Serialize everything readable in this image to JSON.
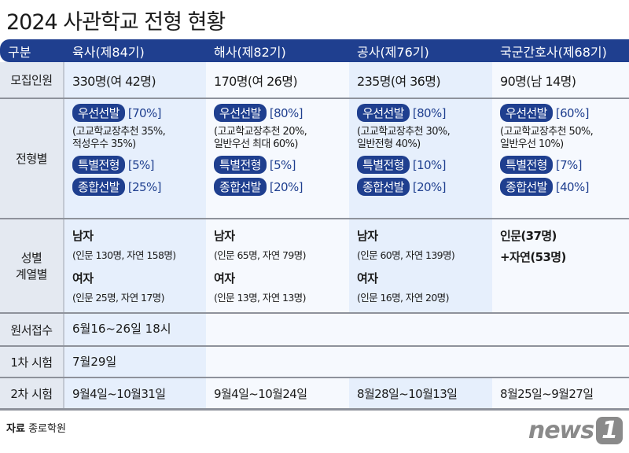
{
  "title": "2024 사관학교 전형 현황",
  "header": [
    "구분",
    "육사(제84기)",
    "해사(제82기)",
    "공사(제76기)",
    "국군간호사(제68기)"
  ],
  "recruit": {
    "label": "모집인원",
    "values": [
      "330명(여 42명)",
      "170명(여 26명)",
      "235명(여 36명)",
      "90명(남 14명)"
    ]
  },
  "selection": {
    "label": "전형별",
    "pill1": "우선선발",
    "pill2": "특별전형",
    "pill3": "종합선발",
    "cols": [
      {
        "p1": "[70%]",
        "n1": "(고교학교장추천 35%,",
        "n2": "적성우수 35%)",
        "p2": "[5%]",
        "p3": "[25%]"
      },
      {
        "p1": "[80%]",
        "n1": "(고교학교장추천 20%,",
        "n2": "일반우선 최대 60%)",
        "p2": "[5%]",
        "p3": "[20%]"
      },
      {
        "p1": "[80%]",
        "n1": "(고교학교장추천 30%,",
        "n2": "일반전형 40%)",
        "p2": "[10%]",
        "p3": "[20%]"
      },
      {
        "p1": "[60%]",
        "n1": "(고교학교장추천 50%,",
        "n2": "일반우선 10%)",
        "p2": "[7%]",
        "p3": "[40%]"
      }
    ]
  },
  "gender": {
    "label1": "성별",
    "label2": "계열별",
    "male": "남자",
    "female": "여자",
    "cols": [
      {
        "m": "(인문 130명, 자연 158명)",
        "f": "(인문 25명, 자연 17명)"
      },
      {
        "m": "(인문 65명, 자연 79명)",
        "f": "(인문 13명, 자연 13명)"
      },
      {
        "m": "(인문 60명, 자연 139명)",
        "f": "(인문 16명, 자연 20명)"
      }
    ],
    "nurse1": "인문(37명)",
    "nurse2": "+자연(53명)"
  },
  "apply": {
    "label": "원서접수",
    "value": "6월16~26일 18시"
  },
  "exam1": {
    "label": "1차 시험",
    "value": "7월29일"
  },
  "exam2": {
    "label": "2차 시험",
    "values": [
      "9월4일~10월31일",
      "9월4일~10월24일",
      "8월28일~10월13일",
      "8월25일~9월27일"
    ]
  },
  "source": {
    "label": "자료",
    "value": "종로학원"
  },
  "logo": "news1",
  "colors": {
    "navy": "#1f3f8f"
  }
}
